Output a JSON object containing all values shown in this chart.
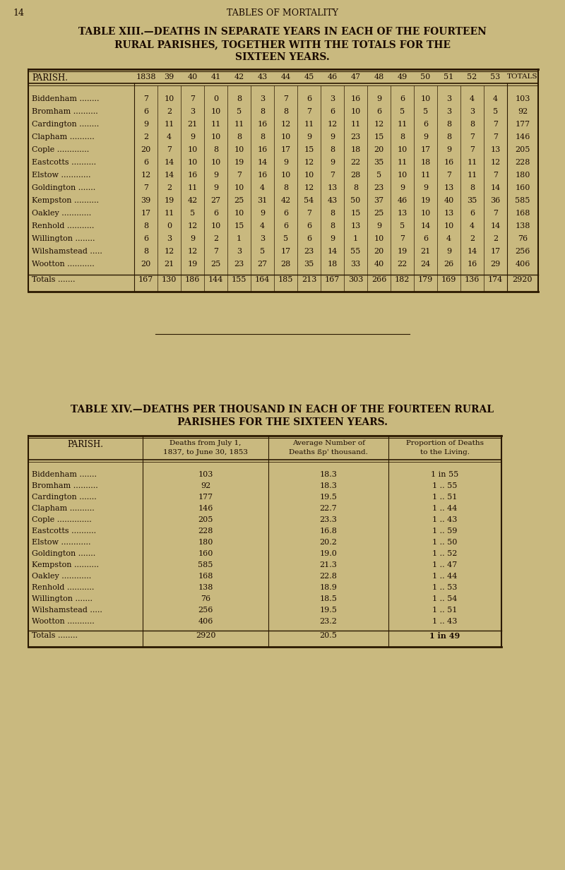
{
  "bg_color": "#c9b97f",
  "page_num": "14",
  "page_header": "TABLES OF MORTALITY",
  "table1_title_line1": "TABLE XIII.—DEATHS IN SEPARATE YEARS IN EACH OF THE FOURTEEN",
  "table1_title_line2": "RURAL PARISHES, TOGETHER WITH THE TOTALS FOR THE",
  "table1_title_line3": "SIXTEEN YEARS.",
  "table1_col_headers": [
    "PARISH.",
    "1838",
    "39",
    "40",
    "41",
    "42",
    "43",
    "44",
    "45",
    "46",
    "47",
    "48",
    "49",
    "50",
    "51",
    "52",
    "53",
    "TOTALS"
  ],
  "table1_data": [
    [
      "Biddenham ........",
      7,
      10,
      7,
      0,
      8,
      3,
      7,
      6,
      3,
      16,
      9,
      6,
      10,
      3,
      4,
      4,
      103
    ],
    [
      "Bromham ..........",
      6,
      2,
      3,
      10,
      5,
      8,
      8,
      7,
      6,
      10,
      6,
      5,
      5,
      3,
      3,
      5,
      92
    ],
    [
      "Cardington ........",
      9,
      11,
      21,
      11,
      11,
      16,
      12,
      11,
      12,
      11,
      12,
      11,
      6,
      8,
      8,
      7,
      177
    ],
    [
      "Clapham ..........",
      2,
      4,
      9,
      10,
      8,
      8,
      10,
      9,
      9,
      23,
      15,
      8,
      9,
      8,
      7,
      7,
      146
    ],
    [
      "Cople .............",
      20,
      7,
      10,
      8,
      10,
      16,
      17,
      15,
      8,
      18,
      20,
      10,
      17,
      9,
      7,
      13,
      205
    ],
    [
      "Eastcotts ..........",
      6,
      14,
      10,
      10,
      19,
      14,
      9,
      12,
      9,
      22,
      35,
      11,
      18,
      16,
      11,
      12,
      228
    ],
    [
      "Elstow ............",
      12,
      14,
      16,
      9,
      7,
      16,
      10,
      10,
      7,
      28,
      5,
      10,
      11,
      7,
      11,
      7,
      180
    ],
    [
      "Goldington .......",
      7,
      2,
      11,
      9,
      10,
      4,
      8,
      12,
      13,
      8,
      23,
      9,
      9,
      13,
      8,
      14,
      160
    ],
    [
      "Kempston ..........",
      39,
      19,
      42,
      27,
      25,
      31,
      42,
      54,
      43,
      50,
      37,
      46,
      19,
      40,
      35,
      36,
      585
    ],
    [
      "Oakley ............",
      17,
      11,
      5,
      6,
      10,
      9,
      6,
      7,
      8,
      15,
      25,
      13,
      10,
      13,
      6,
      7,
      168
    ],
    [
      "Renhold ...........",
      8,
      0,
      12,
      10,
      15,
      4,
      6,
      6,
      8,
      13,
      9,
      5,
      14,
      10,
      4,
      14,
      138
    ],
    [
      "Willington ........",
      6,
      3,
      9,
      2,
      1,
      3,
      5,
      6,
      9,
      1,
      10,
      7,
      6,
      4,
      2,
      2,
      76
    ],
    [
      "Wilshamstead .....",
      8,
      12,
      12,
      7,
      3,
      5,
      17,
      23,
      14,
      55,
      20,
      19,
      21,
      9,
      14,
      17,
      256
    ],
    [
      "Wootton ...........",
      20,
      21,
      19,
      25,
      23,
      27,
      28,
      35,
      18,
      33,
      40,
      22,
      24,
      26,
      16,
      29,
      406
    ]
  ],
  "table1_totals": [
    "Totals .......",
    167,
    130,
    186,
    144,
    155,
    164,
    185,
    213,
    167,
    303,
    266,
    182,
    179,
    169,
    136,
    174,
    2920
  ],
  "table2_title_line1": "TABLE XIV.—DEATHS PER THOUSAND IN EACH OF THE FOURTEEN RURAL",
  "table2_title_line2": "PARISHES FOR THE SIXTEEN YEARS.",
  "table2_col_h1": "PARISH.",
  "table2_col_h2a": "Deaths from July 1,",
  "table2_col_h2b": "1837, to June 30, 1853",
  "table2_col_h3a": "Average Number of",
  "table2_col_h3b": "Deaths ßp' thousand.",
  "table2_col_h4a": "Proportion of Deaths",
  "table2_col_h4b": "to the Living.",
  "table2_data": [
    [
      "Biddenham .......",
      103,
      "18.3",
      "1 in 55"
    ],
    [
      "Bromham ..........",
      92,
      "18.3",
      "1 .. 55"
    ],
    [
      "Cardington .......",
      177,
      "19.5",
      "1 .. 51"
    ],
    [
      "Clapham ..........",
      146,
      "22.7",
      "1 .. 44"
    ],
    [
      "Cople ..............",
      205,
      "23.3",
      "1 .. 43"
    ],
    [
      "Eastcotts ..........",
      228,
      "16.8",
      "1 .. 59"
    ],
    [
      "Elstow ............",
      180,
      "20.2",
      "1 .. 50"
    ],
    [
      "Goldington .......",
      160,
      "19.0",
      "1 .. 52"
    ],
    [
      "Kempston ..........",
      585,
      "21.3",
      "1 .. 47"
    ],
    [
      "Oakley ............",
      168,
      "22.8",
      "1 .. 44"
    ],
    [
      "Renhold ...........",
      138,
      "18.9",
      "1 .. 53"
    ],
    [
      "Willington .......",
      76,
      "18.5",
      "1 .. 54"
    ],
    [
      "Wilshamstead .....",
      256,
      "19.5",
      "1 .. 51"
    ],
    [
      "Wootton ...........",
      406,
      "23.2",
      "1 .. 43"
    ]
  ],
  "table2_totals": [
    "Totals ........",
    2920,
    "20.5",
    "1 in 49"
  ],
  "text_color": "#1a0a00",
  "border_color": "#2a1800"
}
